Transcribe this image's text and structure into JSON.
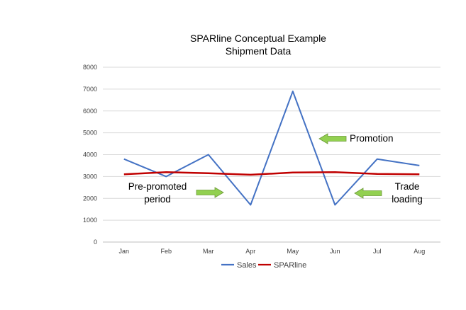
{
  "chart_data": {
    "type": "line",
    "title": "SPARline Conceptual Example",
    "subtitle": "Shipment Data",
    "categories": [
      "Jan",
      "Feb",
      "Mar",
      "Apr",
      "May",
      "Jun",
      "Jul",
      "Aug"
    ],
    "series": [
      {
        "name": "Sales",
        "color": "#4472C4",
        "values": [
          3800,
          3000,
          4000,
          1700,
          6900,
          1700,
          3800,
          3500
        ]
      },
      {
        "name": "SPARline",
        "color": "#C00000",
        "values": [
          3100,
          3200,
          3150,
          3080,
          3180,
          3200,
          3120,
          3100
        ]
      }
    ],
    "y_ticks": [
      "0",
      "1000",
      "2000",
      "3000",
      "4000",
      "5000",
      "6000",
      "7000",
      "8000"
    ],
    "ylim": [
      0,
      8000
    ],
    "grid": true,
    "legend_position": "bottom",
    "annotations": [
      {
        "id": "promotion",
        "lines": [
          "Promotion"
        ],
        "arrow_direction": "left",
        "arrow_color": "#92D050"
      },
      {
        "id": "pre-promoted",
        "lines": [
          "Pre-promoted",
          "period"
        ],
        "arrow_direction": "right",
        "arrow_color": "#92D050"
      },
      {
        "id": "trade-loading",
        "lines": [
          "Trade",
          "loading"
        ],
        "arrow_direction": "left",
        "arrow_color": "#92D050"
      }
    ]
  }
}
